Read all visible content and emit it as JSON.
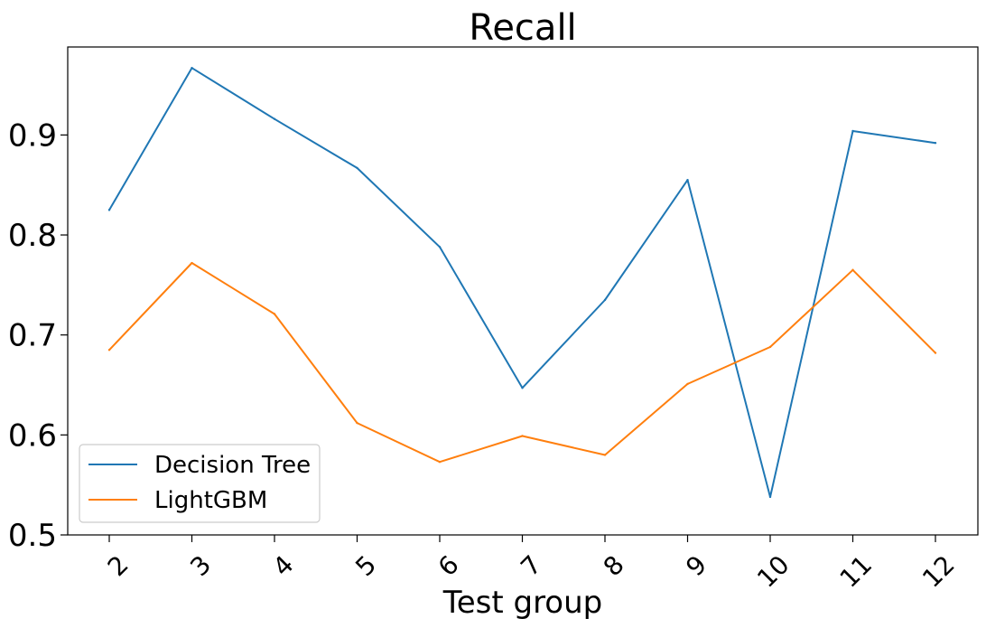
{
  "chart_data": {
    "type": "line",
    "title": "Recall",
    "xlabel": "Test group",
    "ylabel": "",
    "categories": [
      "2",
      "3",
      "4",
      "5",
      "6",
      "7",
      "8",
      "9",
      "10",
      "11",
      "12"
    ],
    "yticks": [
      "0.5",
      "0.6",
      "0.7",
      "0.8",
      "0.9"
    ],
    "ylim": [
      0.5,
      0.988
    ],
    "grid": false,
    "legend_position": "lower-left",
    "series": [
      {
        "name": "Decision Tree",
        "color": "#1f77b4",
        "values": [
          0.825,
          0.967,
          0.916,
          0.867,
          0.788,
          0.647,
          0.735,
          0.855,
          0.538,
          0.904,
          0.892
        ]
      },
      {
        "name": "LightGBM",
        "color": "#ff7f0e",
        "values": [
          0.685,
          0.772,
          0.721,
          0.612,
          0.573,
          0.599,
          0.58,
          0.651,
          0.688,
          0.765,
          0.682
        ]
      }
    ]
  }
}
